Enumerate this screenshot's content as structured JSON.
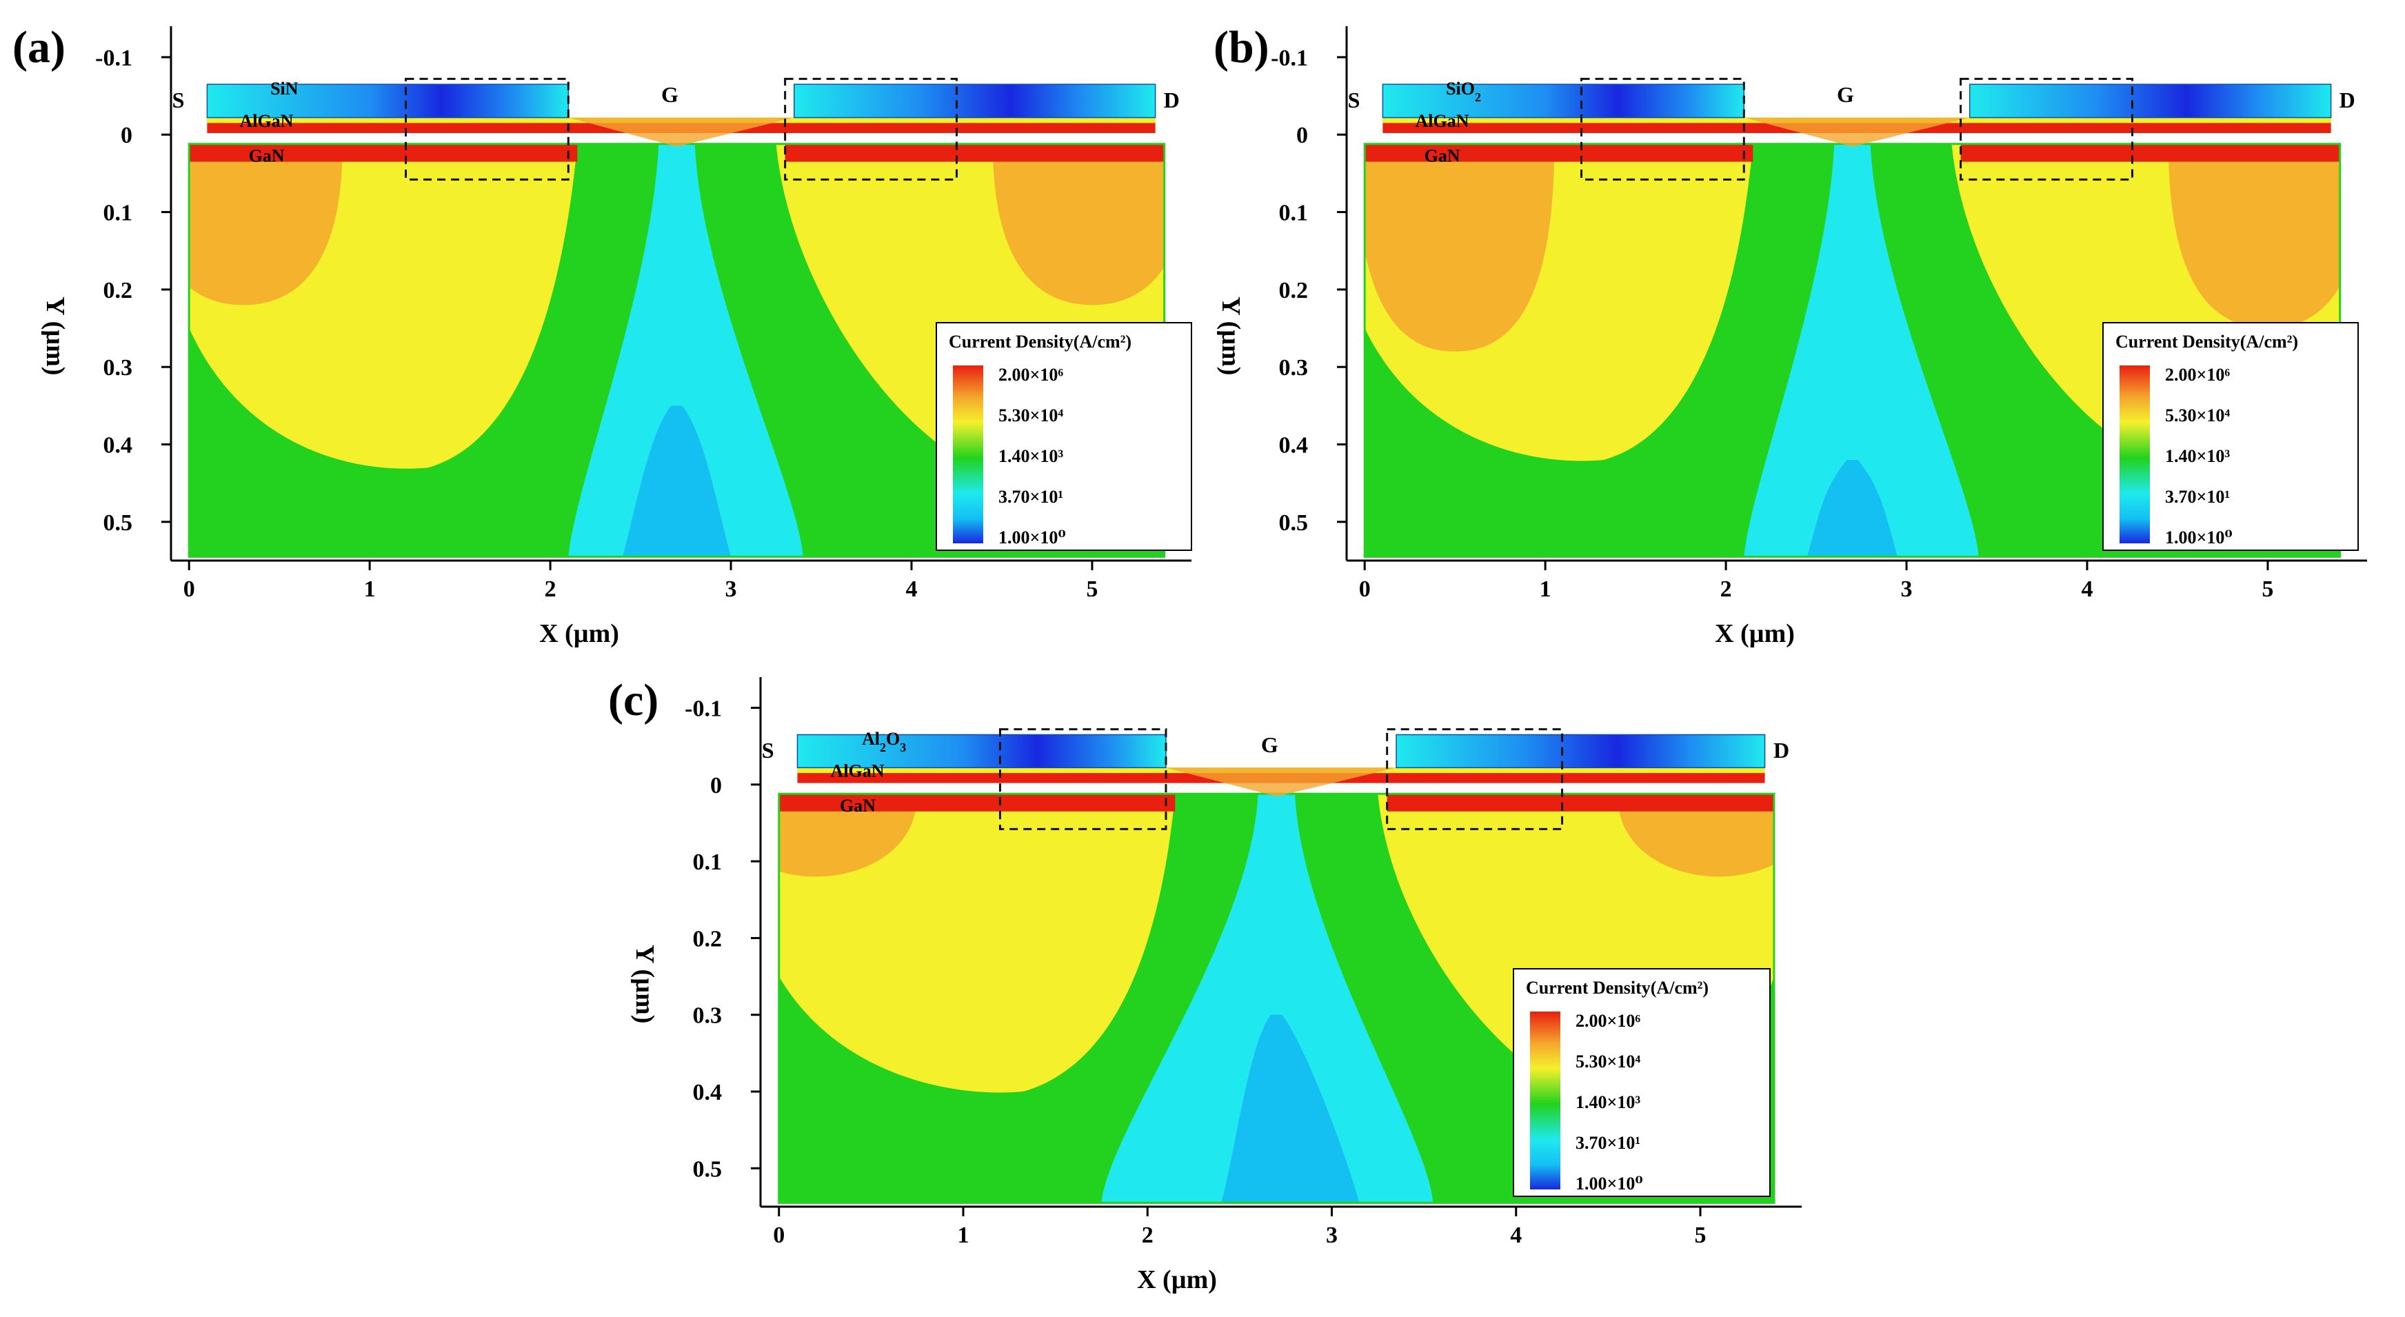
{
  "figure": {
    "panel_count": 3,
    "colors": {
      "contour_red": "#e82010",
      "contour_orange": "#f5a72e",
      "contour_yellow": "#f4f02c",
      "contour_green": "#22d21e",
      "contour_cyan": "#1fe9ee",
      "contour_blue": "#14c0f2",
      "contour_deep_blue": "#1828e0",
      "passivation_blue": "#1e8ef2",
      "axis": "#000000"
    }
  },
  "chart_data": [
    {
      "panel": "(a)",
      "type": "heatmap",
      "title": "",
      "xlabel": "X (µm)",
      "ylabel": "Y (µm)",
      "xlim": [
        -0.1,
        5.55
      ],
      "ylim": [
        0.55,
        -0.14
      ],
      "x_ticks": [
        0,
        1,
        2,
        3,
        4,
        5
      ],
      "y_ticks": [
        -0.1,
        0,
        0.1,
        0.2,
        0.3,
        0.4,
        0.5
      ],
      "passivation": "SiN",
      "passivation_parts": [
        {
          "text": "SiN",
          "sub": ""
        }
      ],
      "region_labels": [
        "AlGaN",
        "GaN"
      ],
      "terminal_labels": [
        "S",
        "G",
        "D"
      ],
      "legend": {
        "title": "Current Density(A/cm²)",
        "entries": [
          "2.00×10⁶",
          "5.30×10⁴",
          "1.40×10³",
          "3.70×10¹",
          "1.00×10⁰"
        ]
      },
      "highlight_boxes_x_um": [
        [
          1.2,
          2.1
        ],
        [
          3.3,
          4.25
        ]
      ],
      "structure_um": {
        "passivation_spans": [
          [
            0.1,
            2.1
          ],
          [
            3.35,
            5.35
          ]
        ],
        "passivation_y": [
          -0.065,
          -0.022
        ],
        "algan_y": [
          -0.022,
          -0.002
        ],
        "gan_x": [
          0.0,
          5.4
        ],
        "gan_y_top": 0.012,
        "gan_y_bottom": 0.545,
        "gate_x": [
          2.1,
          3.35
        ],
        "gate_center_x": 2.7
      },
      "contour_levels": {
        "green_shoulders_top": [
          2.15,
          3.25
        ],
        "green_shoulders_bottom": [
          1.4,
          4.4
        ],
        "yellow_bottom": [
          0.43,
          0.44
        ],
        "cyan_channel_top": [
          2.6,
          2.8
        ],
        "cyan_channel_bottom": [
          2.1,
          3.4
        ],
        "blue_core_top_y": 0.35,
        "blue_core_bottom": [
          2.4,
          3.0
        ],
        "orange_lobes": [
          [
            0.3,
            0.22
          ],
          [
            5.0,
            0.22
          ]
        ]
      }
    },
    {
      "panel": "(b)",
      "type": "heatmap",
      "title": "",
      "xlabel": "X (µm)",
      "ylabel": "Y (µm)",
      "xlim": [
        -0.1,
        5.55
      ],
      "ylim": [
        0.55,
        -0.14
      ],
      "x_ticks": [
        0,
        1,
        2,
        3,
        4,
        5
      ],
      "y_ticks": [
        -0.1,
        0,
        0.1,
        0.2,
        0.3,
        0.4,
        0.5
      ],
      "passivation": "SiO2",
      "passivation_parts": [
        {
          "text": "SiO",
          "sub": "2"
        }
      ],
      "region_labels": [
        "AlGaN",
        "GaN"
      ],
      "terminal_labels": [
        "S",
        "G",
        "D"
      ],
      "legend": {
        "title": "Current Density(A/cm²)",
        "entries": [
          "2.00×10⁶",
          "5.30×10⁴",
          "1.40×10³",
          "3.70×10¹",
          "1.00×10⁰"
        ]
      },
      "highlight_boxes_x_um": [
        [
          1.2,
          2.1
        ],
        [
          3.3,
          4.25
        ]
      ],
      "structure_um": {
        "passivation_spans": [
          [
            0.1,
            2.1
          ],
          [
            3.35,
            5.35
          ]
        ],
        "passivation_y": [
          -0.065,
          -0.022
        ],
        "algan_y": [
          -0.022,
          -0.002
        ],
        "gan_x": [
          0.0,
          5.4
        ],
        "gan_y_top": 0.012,
        "gan_y_bottom": 0.545,
        "gate_x": [
          2.1,
          3.35
        ],
        "gate_center_x": 2.7
      },
      "contour_levels": {
        "green_shoulders_top": [
          2.15,
          3.25
        ],
        "green_shoulders_bottom": [
          1.4,
          4.4
        ],
        "yellow_bottom": [
          0.42,
          0.43
        ],
        "cyan_channel_top": [
          2.6,
          2.8
        ],
        "cyan_channel_bottom": [
          2.1,
          3.4
        ],
        "blue_core_top_y": 0.42,
        "blue_core_bottom": [
          2.45,
          2.95
        ],
        "orange_lobes": [
          [
            0.5,
            0.28
          ],
          [
            5.0,
            0.25
          ]
        ]
      }
    },
    {
      "panel": "(c)",
      "type": "heatmap",
      "title": "",
      "xlabel": "X (µm)",
      "ylabel": "Y (µm)",
      "xlim": [
        -0.1,
        5.55
      ],
      "ylim": [
        0.55,
        -0.14
      ],
      "x_ticks": [
        0,
        1,
        2,
        3,
        4,
        5
      ],
      "y_ticks": [
        -0.1,
        0,
        0.1,
        0.2,
        0.3,
        0.4,
        0.5
      ],
      "passivation": "Al2O3",
      "passivation_parts": [
        {
          "text": "Al",
          "sub": "2"
        },
        {
          "text": "O",
          "sub": "3"
        }
      ],
      "region_labels": [
        "AlGaN",
        "GaN"
      ],
      "terminal_labels": [
        "S",
        "G",
        "D"
      ],
      "legend": {
        "title": "Current Density(A/cm²)",
        "entries": [
          "2.00×10⁶",
          "5.30×10⁴",
          "1.40×10³",
          "3.70×10¹",
          "1.00×10⁰"
        ]
      },
      "highlight_boxes_x_um": [
        [
          1.2,
          2.1
        ],
        [
          3.3,
          4.25
        ]
      ],
      "structure_um": {
        "passivation_spans": [
          [
            0.1,
            2.1
          ],
          [
            3.35,
            5.35
          ]
        ],
        "passivation_y": [
          -0.065,
          -0.022
        ],
        "algan_y": [
          -0.022,
          -0.002
        ],
        "gan_x": [
          0.0,
          5.4
        ],
        "gan_y_top": 0.012,
        "gan_y_bottom": 0.545,
        "gate_x": [
          2.1,
          3.35
        ],
        "gate_center_x": 2.7
      },
      "contour_levels": {
        "green_shoulders_top": [
          2.15,
          3.25
        ],
        "green_shoulders_bottom": [
          1.4,
          4.4
        ],
        "yellow_bottom": [
          0.4,
          0.42
        ],
        "cyan_channel_top": [
          2.6,
          2.8
        ],
        "cyan_channel_bottom": [
          1.75,
          3.55
        ],
        "blue_core_top_y": 0.3,
        "blue_core_bottom": [
          2.4,
          3.15
        ],
        "orange_lobes": [
          [
            0.2,
            0.12
          ],
          [
            5.1,
            0.12
          ]
        ]
      }
    }
  ]
}
